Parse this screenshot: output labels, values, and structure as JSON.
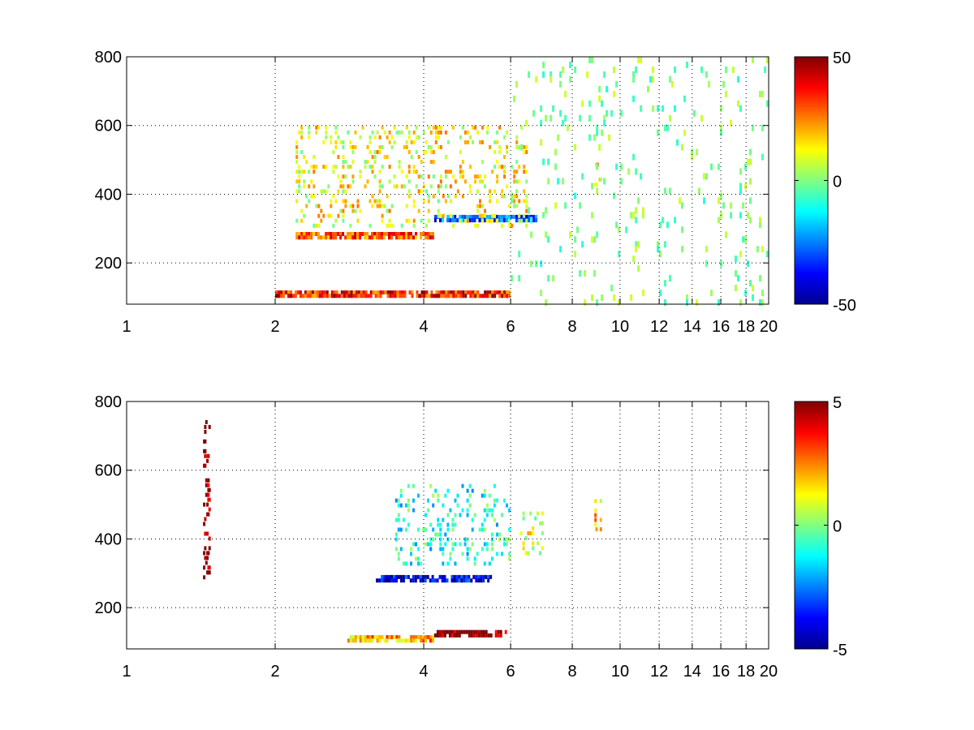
{
  "chart_data": [
    {
      "type": "heatmap",
      "title": "",
      "xlabel": "",
      "ylabel": "",
      "x_scale": "log",
      "xlim": [
        1,
        20
      ],
      "ylim": [
        80,
        800
      ],
      "grid": true,
      "x_ticks": [
        1,
        2,
        4,
        6,
        8,
        10,
        12,
        14,
        16,
        18,
        20
      ],
      "x_tick_labels": [
        "1",
        "2",
        "4",
        "6",
        "8",
        "10",
        "12",
        "14",
        "16",
        "18",
        "20"
      ],
      "y_ticks": [
        200,
        400,
        600,
        800
      ],
      "y_tick_labels": [
        "200",
        "400",
        "600",
        "800"
      ],
      "colormap": "jet",
      "colorbar": {
        "range": [
          -50,
          50
        ],
        "ticks": [
          50,
          0,
          -50
        ],
        "tick_labels": [
          "50",
          "0",
          "-50"
        ]
      },
      "features": [
        {
          "x_range": [
            2,
            6
          ],
          "y": 110,
          "value": 35
        },
        {
          "x_range": [
            2.2,
            4.2
          ],
          "y": 280,
          "value": 30
        },
        {
          "x_range": [
            4.2,
            6.8
          ],
          "y": 330,
          "value": -30
        },
        {
          "x_range": [
            2.2,
            6.5
          ],
          "y_range": [
            300,
            600
          ],
          "value": 12
        },
        {
          "x": 9,
          "y_range": [
            420,
            520
          ],
          "value": 15
        },
        {
          "x_range": [
            6,
            20
          ],
          "y_range": [
            80,
            800
          ],
          "value": 0,
          "pattern": "scattered"
        }
      ]
    },
    {
      "type": "heatmap",
      "title": "",
      "xlabel": "",
      "ylabel": "",
      "x_scale": "log",
      "xlim": [
        1,
        20
      ],
      "ylim": [
        80,
        800
      ],
      "grid": true,
      "x_ticks": [
        1,
        2,
        4,
        6,
        8,
        10,
        12,
        14,
        16,
        18,
        20
      ],
      "x_tick_labels": [
        "1",
        "2",
        "4",
        "6",
        "8",
        "10",
        "12",
        "14",
        "16",
        "18",
        "20"
      ],
      "y_ticks": [
        200,
        400,
        600,
        800
      ],
      "y_tick_labels": [
        "200",
        "400",
        "600",
        "800"
      ],
      "colormap": "jet",
      "colorbar": {
        "range": [
          -5,
          5
        ],
        "ticks": [
          5,
          0,
          -5
        ],
        "tick_labels": [
          "5",
          "0",
          "-5"
        ]
      },
      "features": [
        {
          "x": 1.45,
          "y_range": [
            280,
            760
          ],
          "value": 5
        },
        {
          "x_range": [
            2.8,
            4.2
          ],
          "y": 110,
          "value": 2
        },
        {
          "x_range": [
            4.2,
            5.9
          ],
          "y": 125,
          "value": 5
        },
        {
          "x_range": [
            3.2,
            5.5
          ],
          "y": 285,
          "value": -4
        },
        {
          "x_range": [
            3.5,
            6
          ],
          "y_range": [
            320,
            560
          ],
          "value": -1
        },
        {
          "x_range": [
            6.2,
            7
          ],
          "y_range": [
            350,
            480
          ],
          "value": 1
        },
        {
          "x": 9,
          "y_range": [
            420,
            530
          ],
          "value": 2
        }
      ]
    }
  ]
}
